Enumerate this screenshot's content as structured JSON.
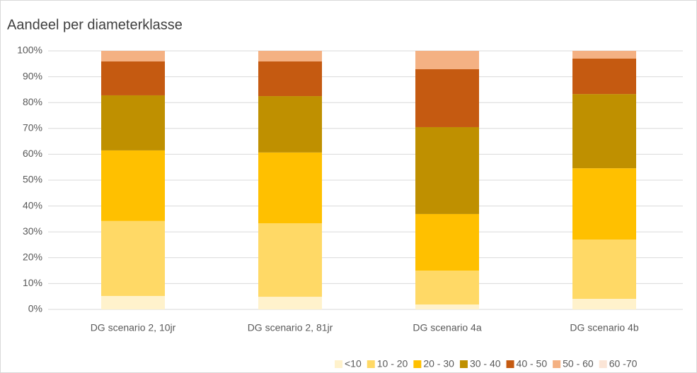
{
  "chart_data": {
    "type": "stacked_bar_100",
    "title": "Aandeel per diameterklasse",
    "categories": [
      "DG scenario 2, 10jr",
      "DG scenario 2, 81jr",
      "DG scenario 4a",
      "DG scenario 4b"
    ],
    "series": [
      {
        "name": "<10",
        "color": "#fff2cc",
        "values": [
          5.2,
          4.9,
          1.9,
          4.1
        ]
      },
      {
        "name": "10 - 20",
        "color": "#ffd966",
        "values": [
          29.0,
          28.4,
          13.1,
          22.9
        ]
      },
      {
        "name": "20 - 30",
        "color": "#ffc000",
        "values": [
          27.3,
          27.4,
          21.9,
          27.6
        ]
      },
      {
        "name": "30 - 40",
        "color": "#bf9000",
        "values": [
          21.3,
          21.8,
          33.6,
          28.7
        ]
      },
      {
        "name": "40 - 50",
        "color": "#c55a11",
        "values": [
          13.1,
          13.4,
          22.4,
          13.7
        ]
      },
      {
        "name": "50 - 60",
        "color": "#f4b183",
        "values": [
          4.1,
          4.1,
          7.1,
          3.0
        ]
      },
      {
        "name": "60 -70",
        "color": "#fbe5d6",
        "values": [
          0,
          0,
          0,
          0
        ]
      }
    ],
    "ylim": [
      0,
      100
    ],
    "yticks": [
      {
        "value": 0,
        "label": "0%"
      },
      {
        "value": 10,
        "label": "10%"
      },
      {
        "value": 20,
        "label": "20%"
      },
      {
        "value": 30,
        "label": "30%"
      },
      {
        "value": 40,
        "label": "40%"
      },
      {
        "value": 50,
        "label": "50%"
      },
      {
        "value": 60,
        "label": "60%"
      },
      {
        "value": 70,
        "label": "70%"
      },
      {
        "value": 80,
        "label": "80%"
      },
      {
        "value": 90,
        "label": "90%"
      },
      {
        "value": 100,
        "label": "100%"
      }
    ],
    "grid": true,
    "legend": "bottom-right"
  }
}
